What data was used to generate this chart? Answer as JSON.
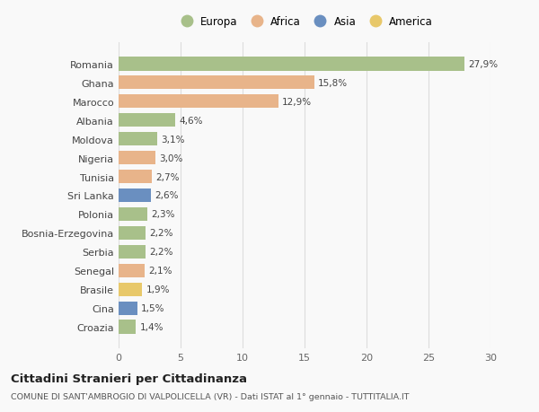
{
  "countries": [
    "Romania",
    "Ghana",
    "Marocco",
    "Albania",
    "Moldova",
    "Nigeria",
    "Tunisia",
    "Sri Lanka",
    "Polonia",
    "Bosnia-Erzegovina",
    "Serbia",
    "Senegal",
    "Brasile",
    "Cina",
    "Croazia"
  ],
  "values": [
    27.9,
    15.8,
    12.9,
    4.6,
    3.1,
    3.0,
    2.7,
    2.6,
    2.3,
    2.2,
    2.2,
    2.1,
    1.9,
    1.5,
    1.4
  ],
  "labels": [
    "27,9%",
    "15,8%",
    "12,9%",
    "4,6%",
    "3,1%",
    "3,0%",
    "2,7%",
    "2,6%",
    "2,3%",
    "2,2%",
    "2,2%",
    "2,1%",
    "1,9%",
    "1,5%",
    "1,4%"
  ],
  "continents": [
    "Europa",
    "Africa",
    "Africa",
    "Europa",
    "Europa",
    "Africa",
    "Africa",
    "Asia",
    "Europa",
    "Europa",
    "Europa",
    "Africa",
    "America",
    "Asia",
    "Europa"
  ],
  "colors": {
    "Europa": "#a8c08a",
    "Africa": "#e8b48a",
    "Asia": "#6a8fc0",
    "America": "#e8c86a"
  },
  "title": "Cittadini Stranieri per Cittadinanza",
  "subtitle": "COMUNE DI SANT'AMBROGIO DI VALPOLICELLA (VR) - Dati ISTAT al 1° gennaio - TUTTITALIA.IT",
  "xlim": [
    0,
    30
  ],
  "xticks": [
    0,
    5,
    10,
    15,
    20,
    25,
    30
  ],
  "background_color": "#f9f9f9",
  "grid_color": "#dddddd",
  "bar_height": 0.75,
  "legend_order": [
    "Europa",
    "Africa",
    "Asia",
    "America"
  ]
}
